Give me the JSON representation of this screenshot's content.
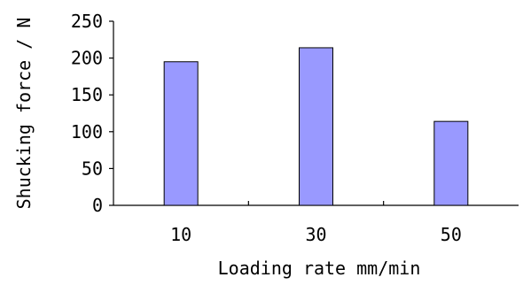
{
  "chart_data": {
    "type": "bar",
    "title": "",
    "categories": [
      "10",
      "30",
      "50"
    ],
    "values": [
      195,
      214,
      114
    ],
    "xlabel": "Loading rate mm/min",
    "ylabel": "Shucking force / N",
    "ylim": [
      0,
      250
    ],
    "yticks": [
      "0",
      "50",
      "100",
      "150",
      "200",
      "250"
    ],
    "grid": false,
    "legend": "none",
    "colors": {
      "bar_fill": "#9999ff",
      "bar_stroke": "#000000",
      "axis": "#000000",
      "background": "#ffffff"
    }
  }
}
